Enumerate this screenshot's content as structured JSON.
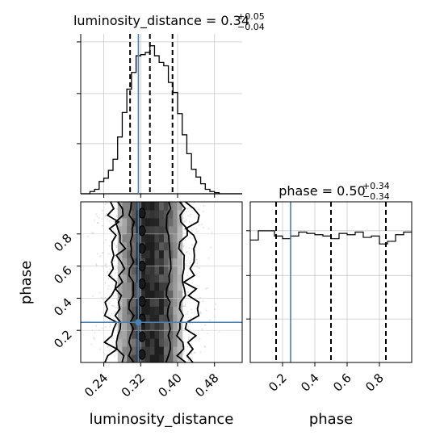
{
  "chart_data": [
    {
      "type": "histogram",
      "panel": "luminosity_distance marginal",
      "title": {
        "name": "luminosity_distance",
        "median": "0.34",
        "plus": "+0.05",
        "minus": "−0.04"
      },
      "xlim": [
        0.19,
        0.54
      ],
      "bin_edges": [
        0.19,
        0.2,
        0.21,
        0.22,
        0.23,
        0.24,
        0.25,
        0.26,
        0.27,
        0.28,
        0.29,
        0.3,
        0.31,
        0.32,
        0.33,
        0.34,
        0.35,
        0.36,
        0.37,
        0.38,
        0.39,
        0.4,
        0.41,
        0.42,
        0.43,
        0.44,
        0.45,
        0.46,
        0.47,
        0.48,
        0.49,
        0.5,
        0.51,
        0.52,
        0.53,
        0.54
      ],
      "counts": [
        0,
        0,
        2,
        4,
        11,
        14,
        21,
        31,
        51,
        73,
        94,
        109,
        124,
        125,
        127,
        133,
        124,
        118,
        115,
        100,
        91,
        72,
        53,
        36,
        22,
        15,
        9,
        4,
        2,
        1,
        0,
        0,
        0,
        0,
        0
      ],
      "quantile_lines": [
        0.297,
        0.34,
        0.389
      ],
      "truth_line": 0.315,
      "line_color": "#000000",
      "truth_color": "#4682b4"
    },
    {
      "type": "histogram2d",
      "panel": "phase vs luminosity_distance",
      "xlabel": "luminosity_distance",
      "ylabel": "phase",
      "xlim": [
        0.19,
        0.54
      ],
      "ylim": [
        0.0,
        1.0
      ],
      "xticks": [
        "0.24",
        "0.32",
        "0.40",
        "0.48"
      ],
      "xtick_values": [
        0.24,
        0.32,
        0.4,
        0.48
      ],
      "yticks": [
        "0.2",
        "0.4",
        "0.6",
        "0.8"
      ],
      "ytick_values": [
        0.2,
        0.4,
        0.6,
        0.8
      ],
      "density_core": {
        "x_center": 0.34,
        "x_sigma": 0.045
      },
      "contour_x_bounds": [
        [
          0.3,
          0.38
        ],
        [
          0.275,
          0.41
        ],
        [
          0.255,
          0.43
        ]
      ],
      "truth": {
        "x": 0.315,
        "y": 0.25
      },
      "truth_color": "#4682b4"
    },
    {
      "type": "histogram",
      "panel": "phase marginal",
      "title": {
        "name": "phase",
        "median": "0.50",
        "plus": "+0.34",
        "minus": "−0.34"
      },
      "xlabel": "phase",
      "xlim": [
        0.0,
        1.0
      ],
      "xticks": [
        "0.2",
        "0.4",
        "0.6",
        "0.8"
      ],
      "xtick_values": [
        0.2,
        0.4,
        0.6,
        0.8
      ],
      "bin_edges": [
        0.0,
        0.05,
        0.1,
        0.15,
        0.2,
        0.25,
        0.3,
        0.35,
        0.4,
        0.45,
        0.5,
        0.55,
        0.6,
        0.65,
        0.7,
        0.75,
        0.8,
        0.85,
        0.9,
        0.95,
        1.0
      ],
      "counts": [
        93,
        100,
        100,
        96,
        94,
        96,
        99,
        98,
        97,
        96,
        94,
        98,
        97,
        99,
        95,
        96,
        90,
        92,
        97,
        99
      ],
      "quantile_lines": [
        0.16,
        0.5,
        0.84
      ],
      "truth_line": 0.25,
      "line_color": "#000000",
      "truth_color": "#4682b4"
    }
  ]
}
